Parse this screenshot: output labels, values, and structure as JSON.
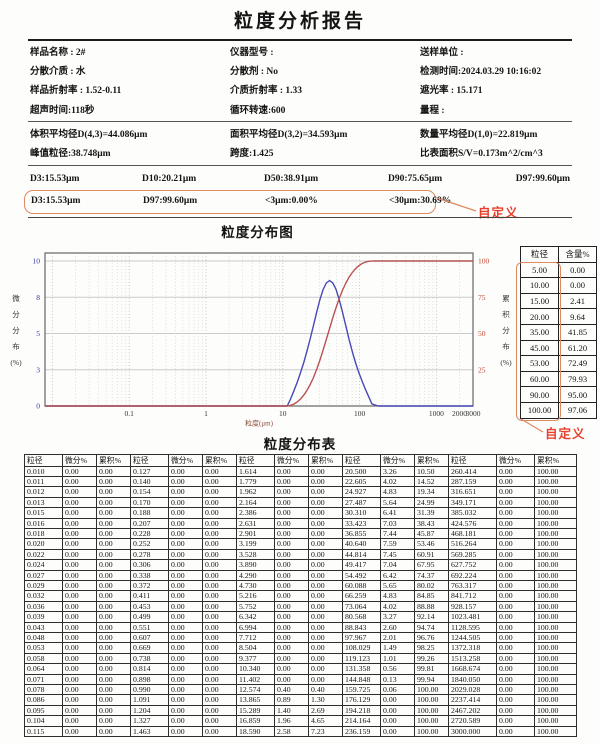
{
  "report": {
    "title": "粒度分析报告",
    "info": [
      "样品名称 : 2#",
      "仪器型号 :",
      "送样单位 :",
      "分散介质 : 水",
      "分散剂 : No",
      "检测时间:2024.03.29 10:16:02",
      "样品折射率 : 1.52-0.11",
      "介质折射率 : 1.33",
      "遮光率 : 15.171",
      "超声时间:118秒",
      "循环转速:600",
      "量程 :"
    ],
    "stats": [
      "体积平均径D(4,3)=44.086μm",
      "面积平均径D(3,2)=34.593μm",
      "数量平均径D(1,0)=22.819μm",
      "峰值粒径:38.748μm",
      "跨度:1.425",
      "比表面积S/V=0.173m^2/cm^3"
    ],
    "d_values": [
      "D3:15.53μm",
      "D10:20.21μm",
      "D50:38.91μm",
      "D90:75.65μm",
      "D97:99.60μm"
    ],
    "custom_row": {
      "values": [
        "D3:15.53μm",
        "D97:99.60μm",
        "<3μm:0.00%",
        "<30μm:30.69%"
      ],
      "annotation": "自定义"
    }
  },
  "chart": {
    "title": "粒度分布图",
    "side_table": {
      "headers": [
        "粒径",
        "含量%"
      ],
      "rows": [
        [
          "5.00",
          "0.00"
        ],
        [
          "10.00",
          "0.00"
        ],
        [
          "15.00",
          "2.41"
        ],
        [
          "20.00",
          "9.64"
        ],
        [
          "35.00",
          "41.85"
        ],
        [
          "45.00",
          "61.20"
        ],
        [
          "53.00",
          "72.49"
        ],
        [
          "60.00",
          "79.93"
        ],
        [
          "90.00",
          "95.00"
        ],
        [
          "100.00",
          "97.06"
        ]
      ],
      "annotation": "自定义"
    }
  },
  "chart_data": {
    "type": "line",
    "title": "粒度分布图",
    "xlabel": "粒度(μm)",
    "x_scale": "log",
    "xlim": [
      0.008,
      3000
    ],
    "x_ticks": [
      0.1,
      1,
      10,
      100,
      1000,
      2000,
      3000
    ],
    "grid": true,
    "left_axis": {
      "label": "微分分布(%)",
      "tick_labels": [
        "0",
        "3",
        "5",
        "8",
        "10"
      ],
      "lim": [
        0,
        10
      ]
    },
    "right_axis": {
      "label": "累积分布(%)",
      "tick_labels": [
        "25",
        "50",
        "75",
        "100"
      ],
      "lim": [
        0,
        100
      ]
    },
    "series": [
      {
        "name": "微分分布",
        "axis": "left",
        "color": "#4848b8",
        "points": [
          [
            0.008,
            0
          ],
          [
            10.34,
            0
          ],
          [
            11.402,
            0
          ],
          [
            12.574,
            0.4
          ],
          [
            13.865,
            0.89
          ],
          [
            15.289,
            1.4
          ],
          [
            16.859,
            1.96
          ],
          [
            18.59,
            2.58
          ],
          [
            20.5,
            3.26
          ],
          [
            22.605,
            4.02
          ],
          [
            24.927,
            4.83
          ],
          [
            27.487,
            5.64
          ],
          [
            30.31,
            6.41
          ],
          [
            33.423,
            7.03
          ],
          [
            36.855,
            7.44
          ],
          [
            40.64,
            7.59
          ],
          [
            44.814,
            7.45
          ],
          [
            49.417,
            7.04
          ],
          [
            54.492,
            6.42
          ],
          [
            60.088,
            5.65
          ],
          [
            66.259,
            4.83
          ],
          [
            73.064,
            4.02
          ],
          [
            80.568,
            3.27
          ],
          [
            88.843,
            2.6
          ],
          [
            97.967,
            2.01
          ],
          [
            108.029,
            1.49
          ],
          [
            119.123,
            1.01
          ],
          [
            131.358,
            0.56
          ],
          [
            144.848,
            0.13
          ],
          [
            159.725,
            0.06
          ],
          [
            176.129,
            0
          ],
          [
            3000,
            0
          ]
        ]
      },
      {
        "name": "累积分布",
        "axis": "right",
        "color": "#b85252",
        "points": [
          [
            0.008,
            0
          ],
          [
            11.402,
            0
          ],
          [
            12.574,
            0.4
          ],
          [
            13.865,
            1.3
          ],
          [
            15.289,
            2.69
          ],
          [
            16.859,
            4.65
          ],
          [
            18.59,
            7.23
          ],
          [
            20.5,
            10.5
          ],
          [
            22.605,
            14.52
          ],
          [
            24.927,
            19.34
          ],
          [
            27.487,
            24.99
          ],
          [
            30.31,
            31.39
          ],
          [
            33.423,
            38.43
          ],
          [
            36.855,
            45.87
          ],
          [
            40.64,
            53.46
          ],
          [
            44.814,
            60.91
          ],
          [
            49.417,
            67.95
          ],
          [
            54.492,
            74.37
          ],
          [
            60.088,
            80.02
          ],
          [
            66.259,
            84.85
          ],
          [
            73.064,
            88.88
          ],
          [
            80.568,
            92.14
          ],
          [
            88.843,
            94.74
          ],
          [
            97.967,
            96.76
          ],
          [
            108.029,
            98.25
          ],
          [
            119.123,
            99.26
          ],
          [
            131.358,
            99.81
          ],
          [
            144.848,
            99.94
          ],
          [
            159.725,
            100
          ],
          [
            3000,
            100
          ]
        ]
      }
    ]
  },
  "main_table": {
    "title": "粒度分布表",
    "group_headers": [
      "粒径",
      "微分%",
      "累积%"
    ],
    "rows": [
      [
        "0.010",
        "0.00",
        "0.00",
        "0.127",
        "0.00",
        "0.00",
        "1.614",
        "0.00",
        "0.00",
        "20.500",
        "3.26",
        "10.50",
        "260.414",
        "0.00",
        "100.00"
      ],
      [
        "0.011",
        "0.00",
        "0.00",
        "0.140",
        "0.00",
        "0.00",
        "1.779",
        "0.00",
        "0.00",
        "22.605",
        "4.02",
        "14.52",
        "287.159",
        "0.00",
        "100.00"
      ],
      [
        "0.012",
        "0.00",
        "0.00",
        "0.154",
        "0.00",
        "0.00",
        "1.962",
        "0.00",
        "0.00",
        "24.927",
        "4.83",
        "19.34",
        "316.651",
        "0.00",
        "100.00"
      ],
      [
        "0.013",
        "0.00",
        "0.00",
        "0.170",
        "0.00",
        "0.00",
        "2.164",
        "0.00",
        "0.00",
        "27.487",
        "5.64",
        "24.99",
        "349.171",
        "0.00",
        "100.00"
      ],
      [
        "0.015",
        "0.00",
        "0.00",
        "0.188",
        "0.00",
        "0.00",
        "2.386",
        "0.00",
        "0.00",
        "30.310",
        "6.41",
        "31.39",
        "385.032",
        "0.00",
        "100.00"
      ],
      [
        "0.016",
        "0.00",
        "0.00",
        "0.207",
        "0.00",
        "0.00",
        "2.631",
        "0.00",
        "0.00",
        "33.423",
        "7.03",
        "38.43",
        "424.576",
        "0.00",
        "100.00"
      ],
      [
        "0.018",
        "0.00",
        "0.00",
        "0.228",
        "0.00",
        "0.00",
        "2.901",
        "0.00",
        "0.00",
        "36.855",
        "7.44",
        "45.87",
        "468.181",
        "0.00",
        "100.00"
      ],
      [
        "0.020",
        "0.00",
        "0.00",
        "0.252",
        "0.00",
        "0.00",
        "3.199",
        "0.00",
        "0.00",
        "40.640",
        "7.59",
        "53.46",
        "516.264",
        "0.00",
        "100.00"
      ],
      [
        "0.022",
        "0.00",
        "0.00",
        "0.278",
        "0.00",
        "0.00",
        "3.528",
        "0.00",
        "0.00",
        "44.814",
        "7.45",
        "60.91",
        "569.285",
        "0.00",
        "100.00"
      ],
      [
        "0.024",
        "0.00",
        "0.00",
        "0.306",
        "0.00",
        "0.00",
        "3.890",
        "0.00",
        "0.00",
        "49.417",
        "7.04",
        "67.95",
        "627.752",
        "0.00",
        "100.00"
      ],
      [
        "0.027",
        "0.00",
        "0.00",
        "0.338",
        "0.00",
        "0.00",
        "4.290",
        "0.00",
        "0.00",
        "54.492",
        "6.42",
        "74.37",
        "692.224",
        "0.00",
        "100.00"
      ],
      [
        "0.029",
        "0.00",
        "0.00",
        "0.372",
        "0.00",
        "0.00",
        "4.730",
        "0.00",
        "0.00",
        "60.088",
        "5.65",
        "80.02",
        "763.317",
        "0.00",
        "100.00"
      ],
      [
        "0.032",
        "0.00",
        "0.00",
        "0.411",
        "0.00",
        "0.00",
        "5.216",
        "0.00",
        "0.00",
        "66.259",
        "4.83",
        "84.85",
        "841.712",
        "0.00",
        "100.00"
      ],
      [
        "0.036",
        "0.00",
        "0.00",
        "0.453",
        "0.00",
        "0.00",
        "5.752",
        "0.00",
        "0.00",
        "73.064",
        "4.02",
        "88.88",
        "928.157",
        "0.00",
        "100.00"
      ],
      [
        "0.039",
        "0.00",
        "0.00",
        "0.499",
        "0.00",
        "0.00",
        "6.342",
        "0.00",
        "0.00",
        "80.568",
        "3.27",
        "92.14",
        "1023.481",
        "0.00",
        "100.00"
      ],
      [
        "0.043",
        "0.00",
        "0.00",
        "0.551",
        "0.00",
        "0.00",
        "6.994",
        "0.00",
        "0.00",
        "88.843",
        "2.60",
        "94.74",
        "1128.595",
        "0.00",
        "100.00"
      ],
      [
        "0.048",
        "0.00",
        "0.00",
        "0.607",
        "0.00",
        "0.00",
        "7.712",
        "0.00",
        "0.00",
        "97.967",
        "2.01",
        "96.76",
        "1244.505",
        "0.00",
        "100.00"
      ],
      [
        "0.053",
        "0.00",
        "0.00",
        "0.669",
        "0.00",
        "0.00",
        "8.504",
        "0.00",
        "0.00",
        "108.029",
        "1.49",
        "98.25",
        "1372.318",
        "0.00",
        "100.00"
      ],
      [
        "0.058",
        "0.00",
        "0.00",
        "0.738",
        "0.00",
        "0.00",
        "9.377",
        "0.00",
        "0.00",
        "119.123",
        "1.01",
        "99.26",
        "1513.258",
        "0.00",
        "100.00"
      ],
      [
        "0.064",
        "0.00",
        "0.00",
        "0.814",
        "0.00",
        "0.00",
        "10.340",
        "0.00",
        "0.00",
        "131.358",
        "0.56",
        "99.81",
        "1668.674",
        "0.00",
        "100.00"
      ],
      [
        "0.071",
        "0.00",
        "0.00",
        "0.898",
        "0.00",
        "0.00",
        "11.402",
        "0.00",
        "0.00",
        "144.848",
        "0.13",
        "99.94",
        "1840.050",
        "0.00",
        "100.00"
      ],
      [
        "0.078",
        "0.00",
        "0.00",
        "0.990",
        "0.00",
        "0.00",
        "12.574",
        "0.40",
        "0.40",
        "159.725",
        "0.06",
        "100.00",
        "2029.028",
        "0.00",
        "100.00"
      ],
      [
        "0.086",
        "0.00",
        "0.00",
        "1.091",
        "0.00",
        "0.00",
        "13.865",
        "0.89",
        "1.30",
        "176.129",
        "0.00",
        "100.00",
        "2237.414",
        "0.00",
        "100.00"
      ],
      [
        "0.095",
        "0.00",
        "0.00",
        "1.204",
        "0.00",
        "0.00",
        "15.289",
        "1.40",
        "2.69",
        "194.218",
        "0.00",
        "100.00",
        "2467.202",
        "0.00",
        "100.00"
      ],
      [
        "0.104",
        "0.00",
        "0.00",
        "1.327",
        "0.00",
        "0.00",
        "16.859",
        "1.96",
        "4.65",
        "214.164",
        "0.00",
        "100.00",
        "2720.589",
        "0.00",
        "100.00"
      ],
      [
        "0.115",
        "0.00",
        "0.00",
        "1.463",
        "0.00",
        "0.00",
        "18.590",
        "2.58",
        "7.23",
        "236.159",
        "0.00",
        "100.00",
        "3000.000",
        "0.00",
        "100.00"
      ]
    ]
  },
  "colors": {
    "highlight_box": "#e08a62",
    "annotation_red": "#e8402e",
    "diff_curve_blue": "#4848b8",
    "cum_curve_red": "#b85252",
    "left_tick_blue": "#3434aa",
    "right_tick_red": "#c04a38"
  }
}
